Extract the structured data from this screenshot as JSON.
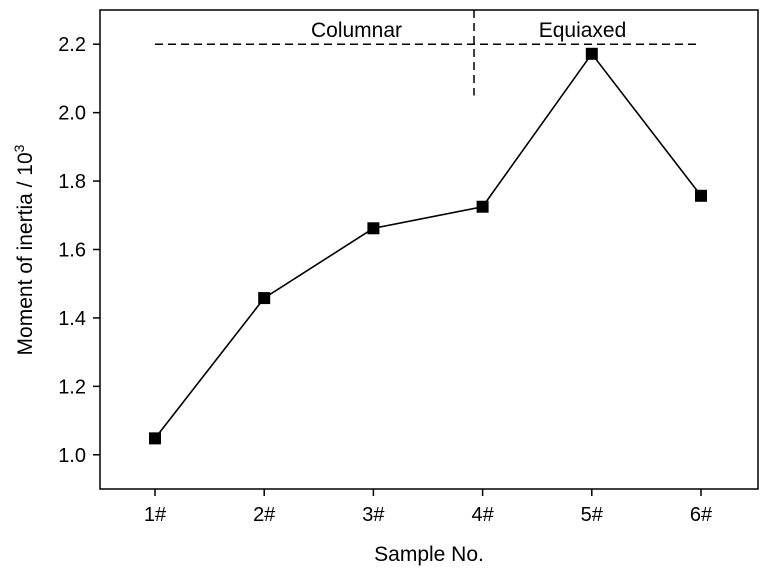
{
  "chart_data": {
    "type": "line",
    "categories": [
      "1#",
      "2#",
      "3#",
      "4#",
      "5#",
      "6#"
    ],
    "series": [
      {
        "values": [
          1.048,
          1.458,
          1.662,
          1.725,
          2.172,
          1.757
        ]
      }
    ],
    "xlabel": "Sample No.",
    "ylabel_main": "Moment of inertia / 10",
    "ylabel_sup": "3",
    "ylim": [
      0.9,
      2.3
    ],
    "yticks": [
      "1.0",
      "1.2",
      "1.4",
      "1.6",
      "1.8",
      "2.0",
      "2.2"
    ],
    "ytick_values": [
      1.0,
      1.2,
      1.4,
      1.6,
      1.8,
      2.0,
      2.2
    ],
    "reference_line_y": 2.2,
    "divider_between": [
      "3#",
      "4#"
    ],
    "divider_y_range": [
      2.05,
      2.3
    ],
    "annotations": [
      {
        "text": "Columnar",
        "region": "left"
      },
      {
        "text": "Equiaxed",
        "region": "right"
      }
    ],
    "grid": false,
    "legend": "none",
    "marker": "square",
    "colors": {
      "line": "#000000",
      "marker": "#000000",
      "axis": "#000000"
    }
  }
}
